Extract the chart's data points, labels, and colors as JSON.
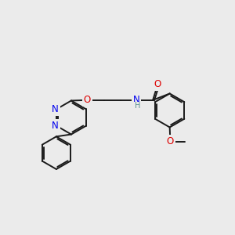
{
  "background_color": "#ebebeb",
  "bond_color": "#1a1a1a",
  "bond_width": 1.4,
  "atom_colors": {
    "N": "#0000ee",
    "O": "#dd0000",
    "H": "#5a9090",
    "C": "#1a1a1a"
  },
  "font_size_atom": 8.5,
  "font_size_H": 7.0,
  "font_size_small": 7.5
}
